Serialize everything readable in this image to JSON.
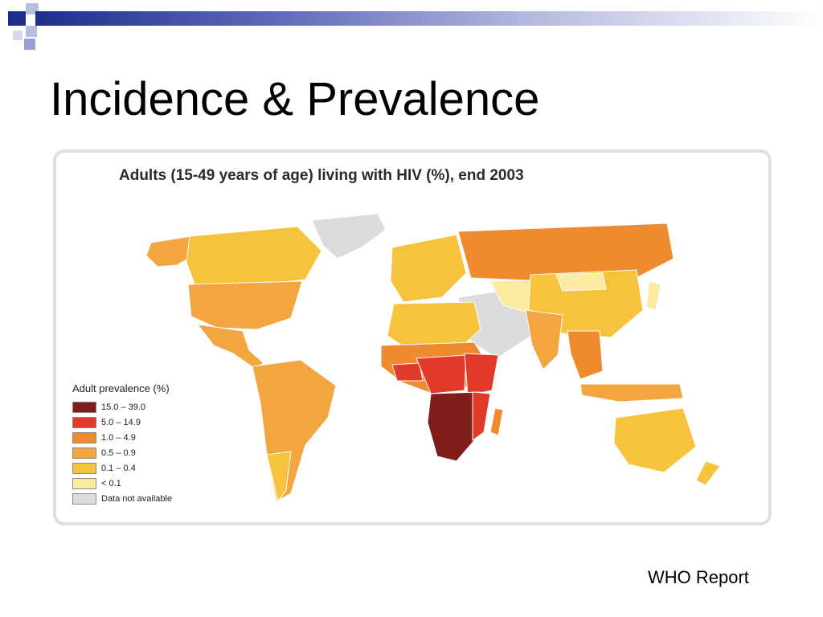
{
  "slide": {
    "title": "Incidence & Prevalence",
    "source_note": "WHO Report",
    "accent_color": "#1f2e8c"
  },
  "map": {
    "heading": "Adults (15-49 years of age) living with HIV (%), end 2003",
    "legend": {
      "title": "Adult prevalence (%)",
      "items": [
        {
          "label": "15.0 – 39.0",
          "color": "#7f1d1a"
        },
        {
          "label": "5.0 – 14.9",
          "color": "#e23a28"
        },
        {
          "label": "1.0 – 4.9",
          "color": "#ef8a2f"
        },
        {
          "label": "0.5 – 0.9",
          "color": "#f3a63f"
        },
        {
          "label": "0.1 – 0.4",
          "color": "#f8c33c"
        },
        {
          "label": "< 0.1",
          "color": "#fbeaa0"
        },
        {
          "label": "Data not available",
          "color": "#dcdcdc"
        }
      ]
    }
  }
}
